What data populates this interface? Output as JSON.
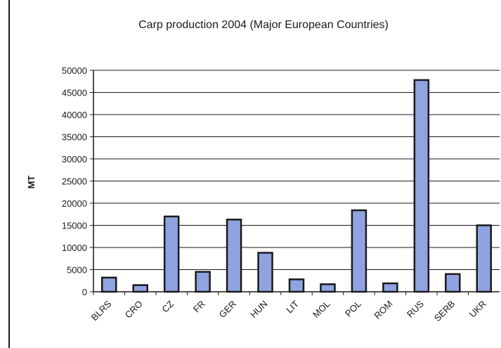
{
  "chart_data": {
    "type": "bar",
    "title": "Carp production 2004 (Major European Countries)",
    "xlabel": "",
    "ylabel": "MT",
    "ylim": [
      0,
      50000
    ],
    "yticks": [
      0,
      5000,
      10000,
      15000,
      20000,
      25000,
      30000,
      35000,
      40000,
      45000,
      50000
    ],
    "grid": true,
    "categories": [
      "BLRS",
      "CRO",
      "CZ",
      "FR",
      "GER",
      "HUN",
      "LIT",
      "MOL",
      "POL",
      "ROM",
      "RUS",
      "SERB",
      "UKR"
    ],
    "values": [
      3200,
      1500,
      17000,
      4500,
      16300,
      8800,
      2800,
      1700,
      18400,
      1900,
      47800,
      4000,
      15000
    ],
    "colors": {
      "bar_fill": "#8fa3e0",
      "bar_stroke": "#1a1a1a",
      "grid": "#1a1a1a"
    }
  }
}
